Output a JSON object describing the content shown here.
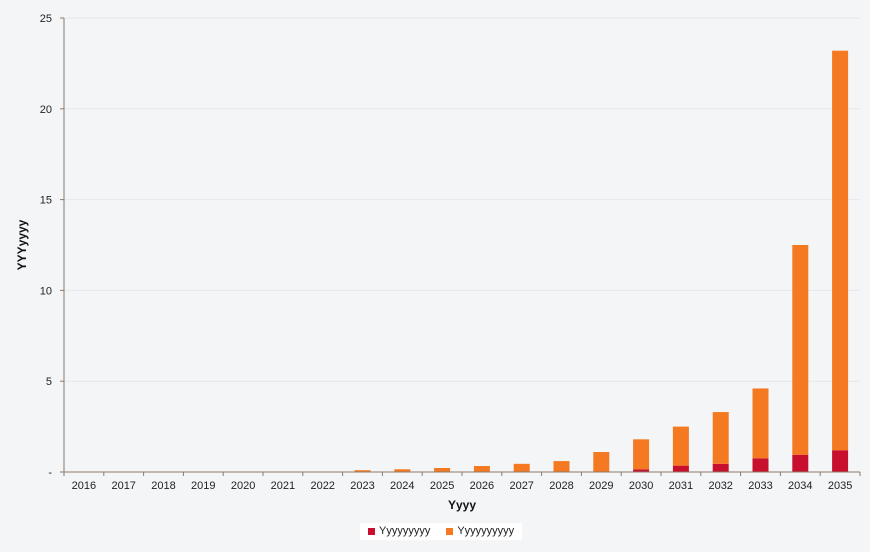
{
  "chart_data": {
    "type": "bar",
    "stacked": true,
    "categories": [
      "2016",
      "2017",
      "2018",
      "2019",
      "2020",
      "2021",
      "2022",
      "2023",
      "2024",
      "2025",
      "2026",
      "2027",
      "2028",
      "2029",
      "2030",
      "2031",
      "2032",
      "2033",
      "2034",
      "2035"
    ],
    "series": [
      {
        "name": "Yyyyyyyyy",
        "color": "#c8102e",
        "values": [
          0,
          0,
          0,
          0,
          0,
          0,
          0,
          0,
          0,
          0,
          0,
          0,
          0,
          0,
          0.15,
          0.35,
          0.45,
          0.75,
          0.95,
          1.2
        ]
      },
      {
        "name": "Yyyyyyyyyy",
        "color": "#f47920",
        "values": [
          0,
          0,
          0,
          0,
          0,
          0,
          0,
          0.1,
          0.15,
          0.22,
          0.33,
          0.45,
          0.6,
          1.1,
          1.65,
          2.15,
          2.85,
          3.85,
          11.55,
          22.0
        ]
      }
    ],
    "xlabel": "Yyyy",
    "ylabel": "YYYyyyy",
    "ylim": [
      0,
      25
    ],
    "yticks": [
      {
        "value": 0,
        "label": "-"
      },
      {
        "value": 5,
        "label": "5"
      },
      {
        "value": 10,
        "label": "10"
      },
      {
        "value": 15,
        "label": "15"
      },
      {
        "value": 20,
        "label": "20"
      },
      {
        "value": 25,
        "label": "25"
      }
    ],
    "grid": true,
    "legend_position": "bottom"
  }
}
